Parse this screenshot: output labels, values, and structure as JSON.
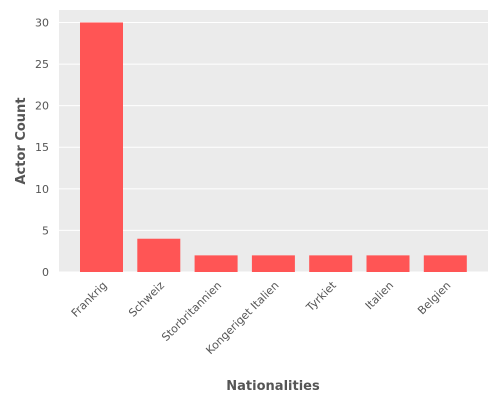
{
  "colors": {
    "bar": "#ff5555",
    "plot_background": "#ebebeb",
    "grid": "#ffffff",
    "text": "#555555"
  },
  "chart_data": {
    "type": "bar",
    "title": "",
    "xlabel": "Nationalities",
    "ylabel": "Actor Count",
    "categories": [
      "Frankrig",
      "Schweiz",
      "Storbritannien",
      "Kongeriget Italien",
      "Tyrkiet",
      "Italien",
      "Belgien"
    ],
    "values": [
      30,
      4,
      2,
      2,
      2,
      2,
      2
    ],
    "ylim": [
      0,
      31.5
    ],
    "yticks": [
      0,
      5,
      10,
      15,
      20,
      25,
      30
    ],
    "grid": true,
    "legend": "none"
  }
}
